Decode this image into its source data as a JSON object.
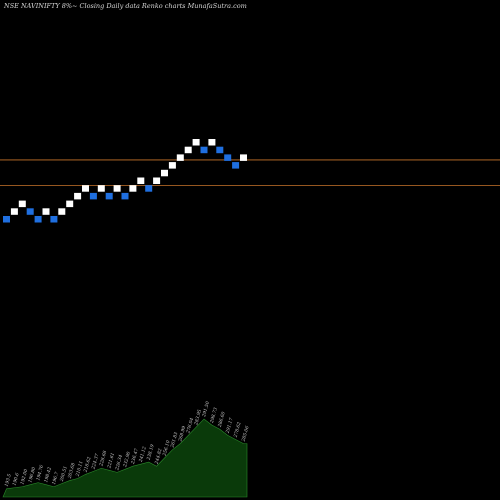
{
  "header": {
    "title": "NSE NAVINIFTY 8%~  Closing Daily data  Renko  charts MunafaSutra.com"
  },
  "colors": {
    "background": "#000000",
    "up_brick": "#ffffff",
    "down_brick": "#1f6fe0",
    "reference_line": "#c8742a",
    "volume_fill": "#0a3a0a",
    "volume_edge": "#2a8a2a"
  },
  "chart_data": {
    "type": "renko",
    "title": "NSE NAVINIFTY 8%~  Closing Daily data  Renko  charts MunafaSutra.com",
    "brick_size_note": "8%",
    "bricks": [
      {
        "direction": "down",
        "level": 0
      },
      {
        "direction": "up",
        "level": 1
      },
      {
        "direction": "up",
        "level": 2
      },
      {
        "direction": "down",
        "level": 1
      },
      {
        "direction": "down",
        "level": 0
      },
      {
        "direction": "up",
        "level": 1
      },
      {
        "direction": "down",
        "level": 0
      },
      {
        "direction": "up",
        "level": 1
      },
      {
        "direction": "up",
        "level": 2
      },
      {
        "direction": "up",
        "level": 3
      },
      {
        "direction": "up",
        "level": 4
      },
      {
        "direction": "down",
        "level": 3
      },
      {
        "direction": "up",
        "level": 4
      },
      {
        "direction": "down",
        "level": 3
      },
      {
        "direction": "up",
        "level": 4
      },
      {
        "direction": "down",
        "level": 3
      },
      {
        "direction": "up",
        "level": 4
      },
      {
        "direction": "up",
        "level": 5
      },
      {
        "direction": "down",
        "level": 4
      },
      {
        "direction": "up",
        "level": 5
      },
      {
        "direction": "up",
        "level": 6
      },
      {
        "direction": "up",
        "level": 7
      },
      {
        "direction": "up",
        "level": 8
      },
      {
        "direction": "up",
        "level": 9
      },
      {
        "direction": "up",
        "level": 10
      },
      {
        "direction": "down",
        "level": 9
      },
      {
        "direction": "up",
        "level": 10
      },
      {
        "direction": "down",
        "level": 9
      },
      {
        "direction": "down",
        "level": 8
      },
      {
        "direction": "down",
        "level": 7
      },
      {
        "direction": "up",
        "level": 8
      }
    ],
    "reference_lines": [
      {
        "level": 7.7
      },
      {
        "level": 4.4
      }
    ],
    "volume": {
      "values": [
        8,
        9,
        10,
        12,
        14,
        12,
        10,
        13,
        16,
        18,
        22,
        25,
        28,
        26,
        24,
        27,
        30,
        32,
        34,
        30,
        38,
        46,
        52,
        60,
        68,
        76,
        70,
        66,
        60,
        56,
        52
      ],
      "labels": [
        "193.5",
        "190.6",
        "192.00",
        "196.80",
        "194.76",
        "198.42",
        "196.7",
        "200.51",
        "203.68",
        "210.11",
        "218.62",
        "224.37",
        "228.68",
        "221.61",
        "226.34",
        "232.90",
        "236.47",
        "241.12",
        "238.19",
        "244.82",
        "256.10",
        "261.83",
        "268.99",
        "276.04",
        "283.95",
        "291.50",
        "298.73",
        "286.60",
        "291.17",
        "278.62",
        "285.06"
      ]
    }
  }
}
